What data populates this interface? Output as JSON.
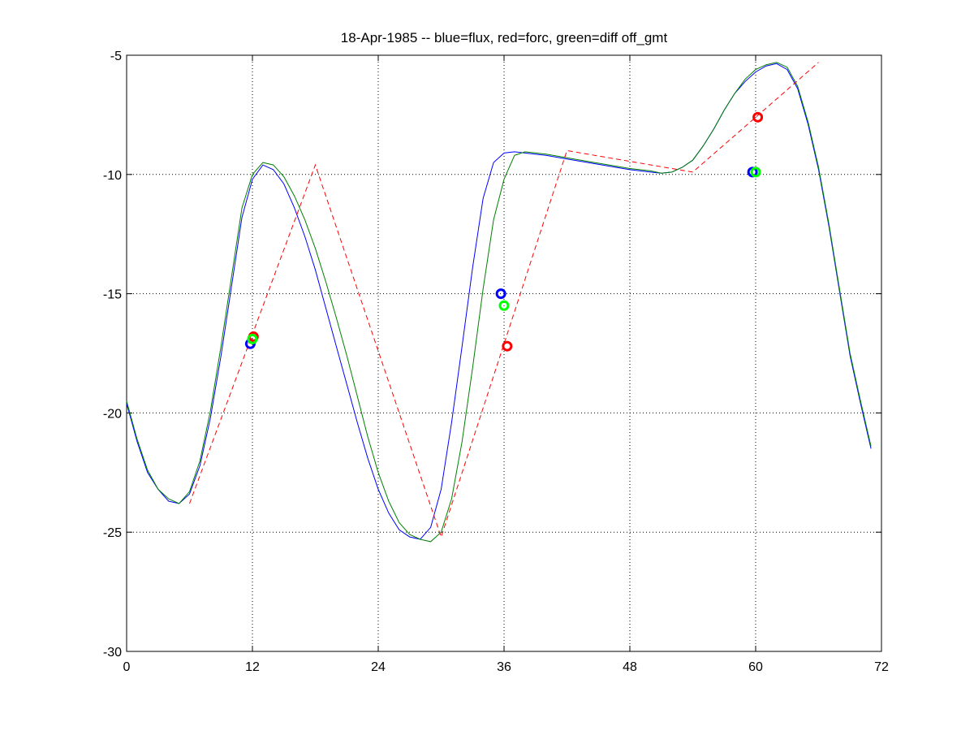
{
  "chart_data": {
    "type": "line",
    "title": "18-Apr-1985 -- blue=flux, red=forc, green=diff off_gmt",
    "xlabel": "",
    "ylabel": "",
    "xlim": [
      0,
      72
    ],
    "ylim": [
      -30,
      -5
    ],
    "xticks": [
      0,
      12,
      24,
      36,
      48,
      60,
      72
    ],
    "yticks": [
      -5,
      -10,
      -15,
      -20,
      -25,
      -30
    ],
    "xtick_labels": [
      "0",
      "12",
      "24",
      "36",
      "48",
      "60",
      "72"
    ],
    "ytick_labels": [
      "-5",
      "-10",
      "-15",
      "-20",
      "-25",
      "-30"
    ],
    "grid": true,
    "series": [
      {
        "color": "#0000ff",
        "style": "solid",
        "x": [
          0,
          1,
          2,
          3,
          4,
          5,
          6,
          7,
          8,
          9,
          10,
          11,
          12,
          13,
          14,
          15,
          16,
          17,
          18,
          19,
          20,
          21,
          22,
          23,
          24,
          25,
          26,
          27,
          28,
          29,
          30,
          31,
          32,
          33,
          34,
          35,
          36,
          37,
          38,
          40,
          42,
          44,
          46,
          48,
          50,
          51,
          52,
          53,
          54,
          55,
          56,
          57,
          58,
          59,
          60,
          61,
          62,
          63,
          64,
          65,
          66,
          67,
          68,
          69,
          70,
          71
        ],
        "y": [
          -19.6,
          -21.2,
          -22.5,
          -23.2,
          -23.7,
          -23.8,
          -23.4,
          -22.2,
          -20.2,
          -17.6,
          -14.7,
          -11.8,
          -10.2,
          -9.6,
          -9.8,
          -10.4,
          -11.4,
          -12.6,
          -14.0,
          -15.6,
          -17.2,
          -18.8,
          -20.4,
          -21.9,
          -23.2,
          -24.2,
          -24.9,
          -25.2,
          -25.3,
          -24.8,
          -23.2,
          -20.4,
          -17.2,
          -13.9,
          -11.0,
          -9.5,
          -9.1,
          -9.05,
          -9.1,
          -9.2,
          -9.35,
          -9.5,
          -9.65,
          -9.8,
          -9.9,
          -9.95,
          -9.9,
          -9.7,
          -9.4,
          -8.8,
          -8.1,
          -7.3,
          -6.6,
          -6.1,
          -5.7,
          -5.45,
          -5.35,
          -5.6,
          -6.4,
          -7.9,
          -9.8,
          -12.2,
          -14.9,
          -17.6,
          -19.6,
          -21.5
        ]
      },
      {
        "color": "#008000",
        "style": "solid",
        "x": [
          0,
          1,
          2,
          3,
          4,
          5,
          6,
          7,
          8,
          9,
          10,
          11,
          12,
          13,
          14,
          15,
          16,
          17,
          18,
          19,
          20,
          21,
          22,
          23,
          24,
          25,
          26,
          27,
          28,
          29,
          30,
          31,
          32,
          33,
          34,
          35,
          36,
          37,
          38,
          40,
          42,
          44,
          46,
          48,
          50,
          51,
          52,
          53,
          54,
          55,
          56,
          57,
          58,
          59,
          60,
          61,
          62,
          63,
          64,
          65,
          66,
          67,
          68,
          69,
          70,
          71
        ],
        "y": [
          -19.5,
          -21.1,
          -22.4,
          -23.2,
          -23.6,
          -23.8,
          -23.3,
          -22.0,
          -19.9,
          -17.2,
          -14.3,
          -11.4,
          -10.0,
          -9.5,
          -9.6,
          -10.1,
          -10.9,
          -11.9,
          -13.1,
          -14.5,
          -16.0,
          -17.6,
          -19.3,
          -21.0,
          -22.5,
          -23.7,
          -24.6,
          -25.1,
          -25.3,
          -25.4,
          -25.0,
          -23.6,
          -21.2,
          -18.1,
          -14.8,
          -11.9,
          -10.2,
          -9.2,
          -9.05,
          -9.15,
          -9.3,
          -9.45,
          -9.6,
          -9.75,
          -9.85,
          -9.95,
          -9.9,
          -9.7,
          -9.4,
          -8.8,
          -8.1,
          -7.3,
          -6.6,
          -6.0,
          -5.6,
          -5.4,
          -5.3,
          -5.5,
          -6.3,
          -7.8,
          -9.7,
          -12.1,
          -14.8,
          -17.5,
          -19.5,
          -21.4
        ]
      },
      {
        "color": "#ff0000",
        "style": "dashed",
        "x": [
          6,
          18,
          30,
          42,
          54,
          66
        ],
        "y": [
          -23.8,
          -9.6,
          -25.2,
          -9.0,
          -9.9,
          -5.3
        ]
      }
    ],
    "markers": [
      {
        "color": "#0000ff",
        "x": 11.8,
        "y": -17.1
      },
      {
        "color": "#ff0000",
        "x": 12.1,
        "y": -16.8
      },
      {
        "color": "#00ff00",
        "x": 12.0,
        "y": -16.9
      },
      {
        "color": "#0000ff",
        "x": 35.7,
        "y": -15.0
      },
      {
        "color": "#00ff00",
        "x": 36.0,
        "y": -15.5
      },
      {
        "color": "#ff0000",
        "x": 36.3,
        "y": -17.2
      },
      {
        "color": "#0000ff",
        "x": 59.7,
        "y": -9.9
      },
      {
        "color": "#00ff00",
        "x": 60.0,
        "y": -9.9
      },
      {
        "color": "#ff0000",
        "x": 60.2,
        "y": -7.6
      }
    ]
  }
}
